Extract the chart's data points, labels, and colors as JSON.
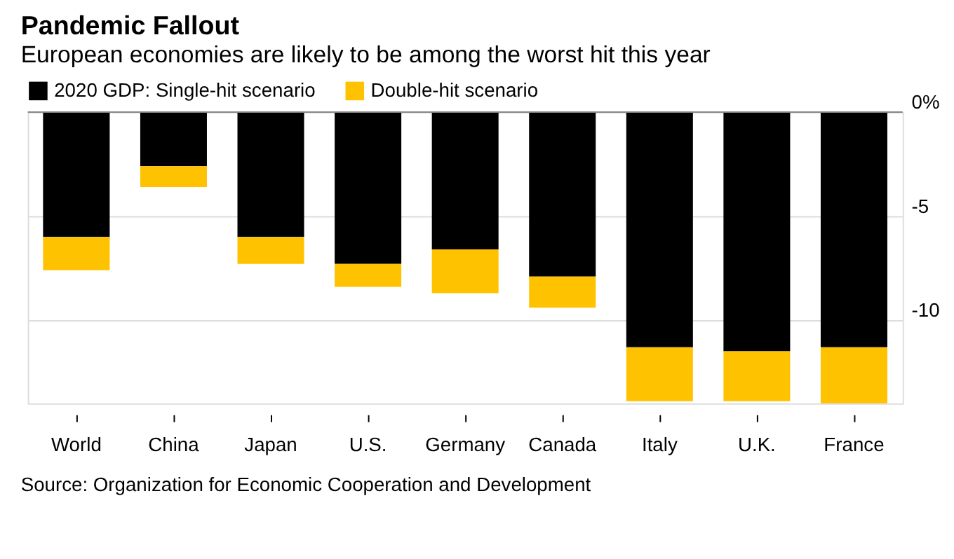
{
  "chart_data": {
    "type": "bar",
    "title": "Pandemic Fallout",
    "subtitle": "European economies are likely to be among the worst hit this year",
    "categories": [
      "World",
      "China",
      "Japan",
      "U.S.",
      "Germany",
      "Canada",
      "Italy",
      "U.K.",
      "France"
    ],
    "stacked": true,
    "series": [
      {
        "name": "2020 GDP: Single-hit scenario",
        "color": "#000000",
        "values": [
          -6.0,
          -2.6,
          -6.0,
          -7.3,
          -6.6,
          -7.9,
          -11.3,
          -11.5,
          -11.3
        ]
      },
      {
        "name": "Double-hit scenario",
        "color": "#ffc200",
        "values": [
          -1.6,
          -1.0,
          -1.3,
          -1.1,
          -2.1,
          -1.5,
          -2.6,
          -2.4,
          -2.7
        ]
      }
    ],
    "ylim": [
      -14.0,
      0
    ],
    "yticks": [
      {
        "value": 0,
        "label": "0%"
      },
      -5,
      -10
    ],
    "grid": "y",
    "legend": "top left",
    "annotations": [
      "Source: Organization for Economic Cooperation and Development"
    ]
  }
}
